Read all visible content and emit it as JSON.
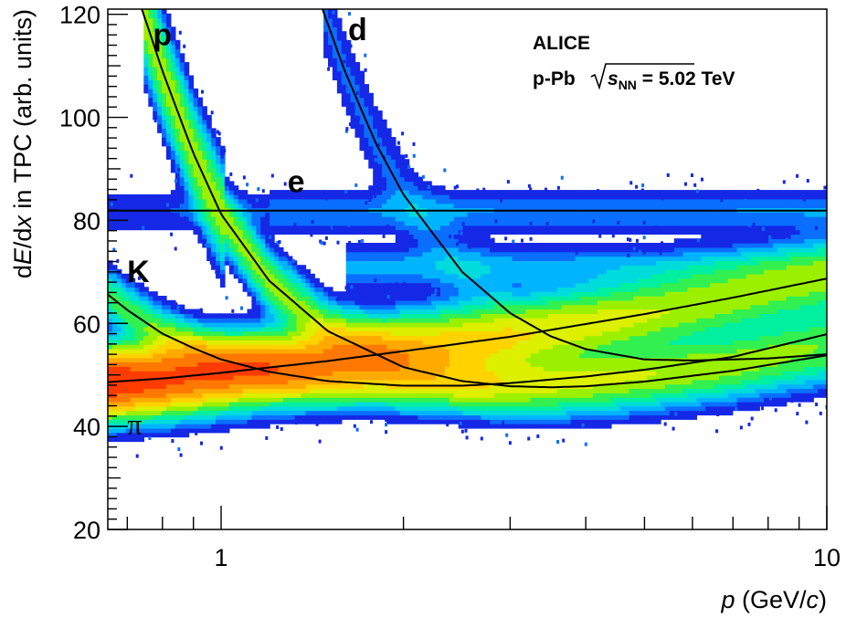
{
  "chart_data": {
    "type": "heatmap",
    "title": "",
    "xlabel_var": "p",
    "xlabel_unit_open": " (GeV/",
    "xlabel_unit_var": "c",
    "xlabel_unit_close": ")",
    "ylabel_pre": "d",
    "ylabel_var1": "E",
    "ylabel_mid": "/d",
    "ylabel_var2": "x",
    "ylabel_post": " in TPC (arb. units)",
    "x_scale": "log",
    "xlim": [
      0.65,
      10
    ],
    "ylim": [
      20,
      121
    ],
    "x_ticks": [
      1,
      10
    ],
    "x_tick_labels": [
      "1",
      "10"
    ],
    "y_ticks": [
      20,
      40,
      60,
      80,
      100,
      120
    ],
    "y_tick_labels": [
      "20",
      "40",
      "60",
      "80",
      "100",
      "120"
    ],
    "colormap": [
      "#1020f0",
      "#00b4ff",
      "#00e6c8",
      "#32f050",
      "#c8f000",
      "#ffd200",
      "#ff8c00",
      "#ff2800"
    ],
    "species_labels": [
      {
        "text": "p",
        "x": 0.8,
        "y": 114
      },
      {
        "text": "d",
        "x": 1.68,
        "y": 115
      },
      {
        "text": "e",
        "x": 1.33,
        "y": 85.5
      },
      {
        "text": "K",
        "x": 0.73,
        "y": 68
      },
      {
        "text": "π",
        "x": 0.72,
        "y": 38.5
      }
    ],
    "bethe_bloch_curves": [
      {
        "name": "e",
        "points": [
          [
            0.65,
            81.9
          ],
          [
            10,
            81.9
          ]
        ]
      },
      {
        "name": "π",
        "points": [
          [
            0.65,
            48.6
          ],
          [
            0.8,
            49.3
          ],
          [
            1.0,
            50.4
          ],
          [
            1.5,
            52.7
          ],
          [
            2.0,
            54.6
          ],
          [
            3.0,
            57.4
          ],
          [
            5.0,
            61.8
          ],
          [
            7.0,
            65.0
          ],
          [
            10.0,
            68.7
          ]
        ]
      },
      {
        "name": "K",
        "points": [
          [
            0.65,
            65.6
          ],
          [
            0.7,
            62.6
          ],
          [
            0.8,
            58.0
          ],
          [
            0.9,
            55.2
          ],
          [
            1.0,
            53.0
          ],
          [
            1.2,
            50.6
          ],
          [
            1.5,
            48.8
          ],
          [
            2.0,
            47.9
          ],
          [
            2.5,
            47.9
          ],
          [
            3.0,
            48.4
          ],
          [
            4.0,
            49.7
          ],
          [
            5.0,
            51.0
          ],
          [
            7.0,
            53.5
          ],
          [
            10.0,
            57.9
          ]
        ]
      },
      {
        "name": "p",
        "points": [
          [
            0.74,
            121.0
          ],
          [
            0.8,
            109.0
          ],
          [
            0.9,
            93.0
          ],
          [
            1.0,
            81.2
          ],
          [
            1.2,
            68.3
          ],
          [
            1.5,
            58.5
          ],
          [
            2.0,
            51.5
          ],
          [
            2.5,
            48.8
          ],
          [
            3.0,
            47.8
          ],
          [
            3.5,
            47.6
          ],
          [
            4.0,
            47.8
          ],
          [
            5.0,
            48.7
          ],
          [
            7.0,
            50.8
          ],
          [
            10.0,
            53.8
          ]
        ]
      },
      {
        "name": "d",
        "points": [
          [
            1.47,
            121.0
          ],
          [
            1.6,
            109.0
          ],
          [
            1.8,
            95.0
          ],
          [
            2.0,
            85.0
          ],
          [
            2.5,
            70.0
          ],
          [
            3.0,
            62.0
          ],
          [
            3.5,
            57.5
          ],
          [
            4.0,
            55.0
          ],
          [
            5.0,
            53.0
          ],
          [
            6.0,
            52.8
          ],
          [
            7.0,
            53.0
          ],
          [
            8.0,
            53.2
          ],
          [
            10.0,
            54.0
          ]
        ]
      }
    ]
  },
  "annotation": {
    "experiment": "ALICE",
    "system": "p-Pb",
    "sqrt_s": "s",
    "sqrt_sub": "NN",
    "energy": " = 5.02 TeV"
  }
}
